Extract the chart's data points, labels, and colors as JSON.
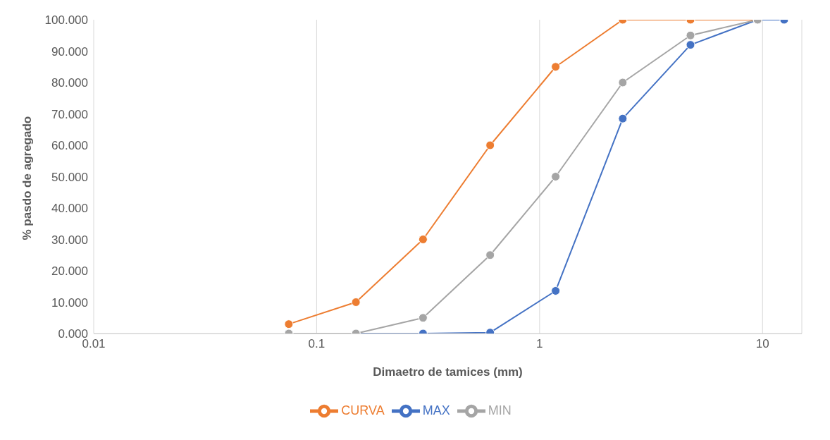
{
  "chart_data": {
    "type": "line",
    "xlabel": "Dimaetro de tamices (mm)",
    "ylabel": "% pasdo de agregado",
    "log": "x",
    "xlim": [
      0.01,
      15
    ],
    "xticks": [
      0.01,
      0.1,
      1,
      10
    ],
    "ylim": [
      0,
      100
    ],
    "yticks": [
      {
        "value": 0,
        "label": "0.000"
      },
      {
        "value": 10,
        "label": "10.000"
      },
      {
        "value": 20,
        "label": "20.000"
      },
      {
        "value": 30,
        "label": "30.000"
      },
      {
        "value": 40,
        "label": "40.000"
      },
      {
        "value": 50,
        "label": "50.000"
      },
      {
        "value": 60,
        "label": "60.000"
      },
      {
        "value": 70,
        "label": "70.000"
      },
      {
        "value": 80,
        "label": "80.000"
      },
      {
        "value": 90,
        "label": "90.000"
      },
      {
        "value": 100,
        "label": "100.000"
      }
    ],
    "grid": "x",
    "legend": "bottom",
    "marker": "circle",
    "line_style": "solid",
    "series": [
      {
        "name": "MAX",
        "color": "#4472c4",
        "x": [
          0.075,
          0.15,
          0.3,
          0.6,
          1.18,
          2.36,
          4.75,
          9.5,
          12.5
        ],
        "values": [
          0,
          0,
          0,
          0.3,
          13.6,
          68.5,
          92,
          100,
          100
        ]
      },
      {
        "name": "CURVA",
        "color": "#ed7d31",
        "x": [
          0.075,
          0.15,
          0.3,
          0.6,
          1.18,
          2.36,
          4.75,
          9.5
        ],
        "values": [
          3,
          10,
          30,
          60,
          85,
          100,
          100,
          100
        ]
      },
      {
        "name": "MIN",
        "color": "#a5a5a5",
        "x": [
          0.075,
          0.15,
          0.3,
          0.6,
          1.18,
          2.36,
          4.75,
          9.5
        ],
        "values": [
          0,
          0,
          5,
          25,
          50,
          80,
          95,
          100
        ]
      }
    ]
  }
}
